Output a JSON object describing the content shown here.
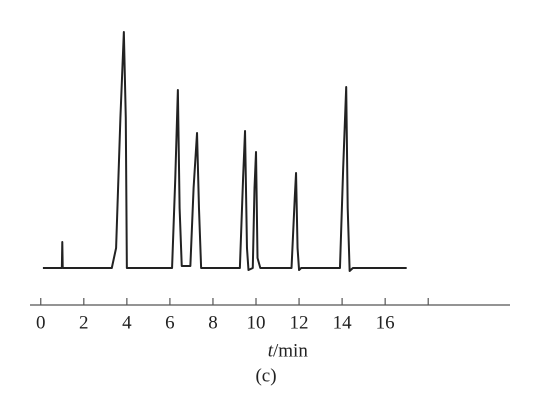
{
  "chart_data": {
    "type": "line",
    "title": "(c)",
    "xlabel_var": "t",
    "xlabel_unit": "/min",
    "xlim": [
      -0.5,
      21.8
    ],
    "xticks": [
      0,
      2,
      4,
      6,
      8,
      10,
      12,
      14,
      16,
      {
        "value": 18,
        "label": null
      }
    ],
    "color": "#222222",
    "axis_color": "#555555",
    "x": [
      0.1,
      0.98,
      1.0,
      1.02,
      3.3,
      3.5,
      3.7,
      3.86,
      3.95,
      4.0,
      6.1,
      6.25,
      6.37,
      6.45,
      6.55,
      6.95,
      7.1,
      7.26,
      7.35,
      7.45,
      9.25,
      9.4,
      9.49,
      9.58,
      9.65,
      9.85,
      9.93,
      10.0,
      10.07,
      10.2,
      11.65,
      11.8,
      11.86,
      11.93,
      12.0,
      12.1,
      13.9,
      14.05,
      14.19,
      14.26,
      14.35,
      14.5,
      17.0
    ],
    "values": [
      0,
      0,
      26,
      0,
      0,
      20,
      150,
      236,
      150,
      0,
      0,
      90,
      178,
      60,
      2,
      2,
      80,
      135,
      60,
      0,
      0,
      90,
      137,
      20,
      -2,
      0,
      80,
      116,
      10,
      0,
      0,
      70,
      95,
      20,
      -2,
      0,
      0,
      100,
      181,
      60,
      -3,
      0,
      0
    ]
  }
}
